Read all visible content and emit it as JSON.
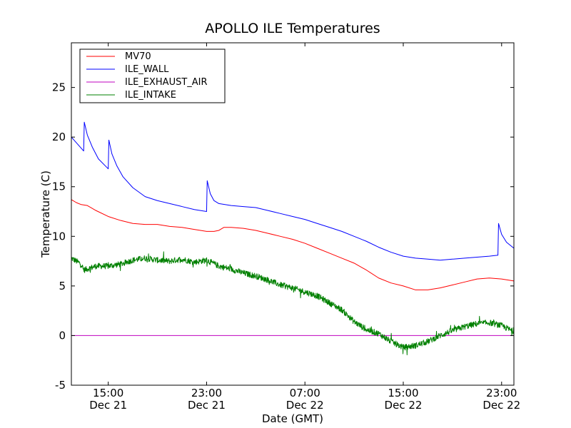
{
  "chart_data": {
    "type": "line",
    "title": "APOLLO ILE Temperatures",
    "xlabel": "Date (GMT)",
    "ylabel": "Temperature (C)",
    "x_unit": "hours",
    "xlim": [
      12.0,
      48.0
    ],
    "ylim": [
      -5,
      29.5
    ],
    "yticks": [
      -5,
      0,
      5,
      10,
      15,
      20,
      25
    ],
    "xticks": [
      {
        "value": 15,
        "time": "15:00",
        "date": "Dec 21"
      },
      {
        "value": 23,
        "time": "23:00",
        "date": "Dec 21"
      },
      {
        "value": 31,
        "time": "07:00",
        "date": "Dec 22"
      },
      {
        "value": 39,
        "time": "15:00",
        "date": "Dec 22"
      },
      {
        "value": 47,
        "time": "23:00",
        "date": "Dec 22"
      }
    ],
    "grid": false,
    "legend": {
      "placement": "top-left"
    },
    "series": [
      {
        "name": "MV70",
        "color": "#ff0000",
        "points": [
          [
            12.0,
            13.7
          ],
          [
            12.4,
            13.4
          ],
          [
            12.8,
            13.2
          ],
          [
            13.3,
            13.1
          ],
          [
            14.0,
            12.6
          ],
          [
            15.0,
            12.0
          ],
          [
            16.0,
            11.6
          ],
          [
            17.0,
            11.3
          ],
          [
            18.0,
            11.2
          ],
          [
            19.0,
            11.2
          ],
          [
            20.0,
            11.0
          ],
          [
            21.0,
            10.9
          ],
          [
            22.0,
            10.7
          ],
          [
            23.0,
            10.5
          ],
          [
            23.6,
            10.5
          ],
          [
            24.0,
            10.6
          ],
          [
            24.4,
            10.9
          ],
          [
            25.0,
            10.9
          ],
          [
            26.0,
            10.8
          ],
          [
            27.0,
            10.6
          ],
          [
            28.0,
            10.3
          ],
          [
            29.0,
            10.0
          ],
          [
            30.0,
            9.7
          ],
          [
            31.0,
            9.3
          ],
          [
            32.0,
            8.8
          ],
          [
            33.0,
            8.3
          ],
          [
            34.0,
            7.8
          ],
          [
            35.0,
            7.3
          ],
          [
            36.0,
            6.6
          ],
          [
            37.0,
            5.8
          ],
          [
            38.0,
            5.3
          ],
          [
            39.0,
            5.0
          ],
          [
            40.0,
            4.6
          ],
          [
            41.0,
            4.6
          ],
          [
            42.0,
            4.8
          ],
          [
            43.0,
            5.1
          ],
          [
            44.0,
            5.4
          ],
          [
            45.0,
            5.7
          ],
          [
            46.0,
            5.8
          ],
          [
            47.0,
            5.7
          ],
          [
            48.0,
            5.5
          ]
        ]
      },
      {
        "name": "ILE_WALL",
        "color": "#0000ff",
        "points": [
          [
            12.0,
            20.0
          ],
          [
            12.5,
            19.3
          ],
          [
            13.0,
            18.6
          ],
          [
            13.05,
            21.5
          ],
          [
            13.3,
            20.2
          ],
          [
            13.7,
            19.0
          ],
          [
            14.2,
            17.8
          ],
          [
            15.0,
            16.8
          ],
          [
            15.05,
            19.7
          ],
          [
            15.3,
            18.3
          ],
          [
            15.7,
            17.1
          ],
          [
            16.2,
            16.0
          ],
          [
            17.0,
            14.9
          ],
          [
            18.0,
            14.0
          ],
          [
            19.0,
            13.6
          ],
          [
            20.0,
            13.3
          ],
          [
            21.0,
            13.0
          ],
          [
            22.0,
            12.7
          ],
          [
            23.0,
            12.5
          ],
          [
            23.05,
            15.6
          ],
          [
            23.3,
            14.3
          ],
          [
            23.6,
            13.6
          ],
          [
            24.0,
            13.3
          ],
          [
            25.0,
            13.1
          ],
          [
            26.0,
            13.0
          ],
          [
            27.0,
            12.9
          ],
          [
            28.0,
            12.6
          ],
          [
            29.0,
            12.3
          ],
          [
            30.0,
            12.0
          ],
          [
            31.0,
            11.7
          ],
          [
            32.0,
            11.3
          ],
          [
            33.0,
            10.9
          ],
          [
            34.0,
            10.5
          ],
          [
            35.0,
            10.0
          ],
          [
            36.0,
            9.5
          ],
          [
            37.0,
            8.9
          ],
          [
            38.0,
            8.4
          ],
          [
            39.0,
            8.0
          ],
          [
            40.0,
            7.8
          ],
          [
            41.0,
            7.7
          ],
          [
            42.0,
            7.6
          ],
          [
            43.0,
            7.7
          ],
          [
            44.0,
            7.8
          ],
          [
            45.0,
            7.9
          ],
          [
            46.0,
            8.0
          ],
          [
            46.7,
            8.1
          ],
          [
            46.75,
            11.3
          ],
          [
            47.0,
            10.2
          ],
          [
            47.4,
            9.4
          ],
          [
            48.0,
            8.8
          ]
        ]
      },
      {
        "name": "ILE_EXHAUST_AIR",
        "color": "#bf00bf",
        "points": [
          [
            12.0,
            0.0
          ],
          [
            48.0,
            0.0
          ]
        ]
      },
      {
        "name": "ILE_INTAKE",
        "color": "#008000",
        "noise": 0.3,
        "points": [
          [
            12.0,
            7.8
          ],
          [
            12.8,
            7.2
          ],
          [
            13.0,
            6.6
          ],
          [
            14.0,
            7.0
          ],
          [
            15.0,
            7.0
          ],
          [
            16.0,
            7.2
          ],
          [
            17.0,
            7.6
          ],
          [
            18.0,
            7.8
          ],
          [
            19.0,
            7.6
          ],
          [
            20.0,
            7.5
          ],
          [
            21.0,
            7.7
          ],
          [
            22.0,
            7.4
          ],
          [
            23.0,
            7.6
          ],
          [
            24.0,
            7.0
          ],
          [
            25.0,
            6.7
          ],
          [
            26.0,
            6.3
          ],
          [
            27.0,
            6.0
          ],
          [
            28.0,
            5.6
          ],
          [
            29.0,
            5.1
          ],
          [
            30.0,
            4.8
          ],
          [
            31.0,
            4.4
          ],
          [
            32.0,
            4.0
          ],
          [
            33.0,
            3.3
          ],
          [
            34.0,
            2.6
          ],
          [
            35.0,
            1.4
          ],
          [
            36.0,
            0.6
          ],
          [
            37.0,
            0.2
          ],
          [
            38.0,
            -0.6
          ],
          [
            39.0,
            -1.2
          ],
          [
            40.0,
            -1.0
          ],
          [
            41.0,
            -0.6
          ],
          [
            42.0,
            0.0
          ],
          [
            43.0,
            0.5
          ],
          [
            44.0,
            0.9
          ],
          [
            45.0,
            1.2
          ],
          [
            46.0,
            1.3
          ],
          [
            47.0,
            1.0
          ],
          [
            48.0,
            0.4
          ]
        ]
      }
    ]
  }
}
